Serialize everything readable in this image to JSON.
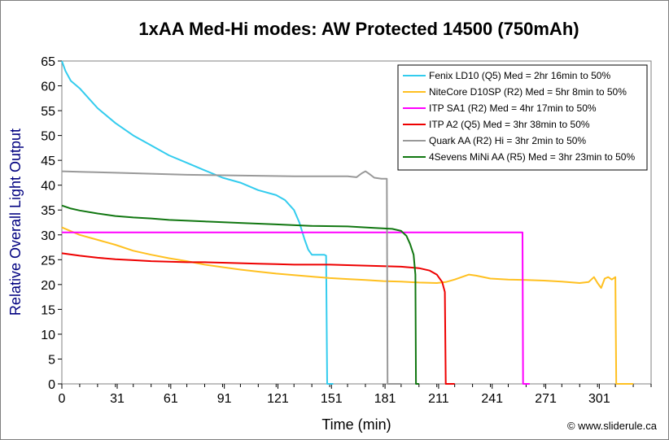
{
  "chart_data": {
    "type": "line",
    "title": "1xAA Med-Hi modes: AW Protected 14500 (750mAh)",
    "xlabel": "Time (min)",
    "ylabel": "Relative Overall Light Output",
    "xlim": [
      0,
      330
    ],
    "ylim": [
      0,
      65
    ],
    "x_ticks": [
      0,
      31,
      61,
      91,
      121,
      151,
      181,
      211,
      241,
      271,
      301
    ],
    "y_ticks": [
      0,
      5,
      10,
      15,
      20,
      25,
      30,
      35,
      40,
      45,
      50,
      55,
      60,
      65
    ],
    "legend_position": "top-right",
    "credit": "© www.sliderule.ca",
    "series": [
      {
        "name": "Fenix LD10 (Q5) Med = 2hr 16min to 50%",
        "color": "#33ccee",
        "points": [
          [
            0,
            65
          ],
          [
            2,
            63
          ],
          [
            5,
            61
          ],
          [
            10,
            59.5
          ],
          [
            15,
            57.5
          ],
          [
            20,
            55.5
          ],
          [
            30,
            52.5
          ],
          [
            40,
            50
          ],
          [
            50,
            48
          ],
          [
            60,
            46
          ],
          [
            70,
            44.5
          ],
          [
            80,
            43
          ],
          [
            90,
            41.5
          ],
          [
            100,
            40.5
          ],
          [
            110,
            39
          ],
          [
            120,
            38
          ],
          [
            125,
            37
          ],
          [
            130,
            35
          ],
          [
            133,
            32.5
          ],
          [
            136,
            29
          ],
          [
            138,
            27
          ],
          [
            140,
            26
          ],
          [
            145,
            26
          ],
          [
            147,
            26
          ],
          [
            148,
            25.8
          ],
          [
            148.6,
            0
          ],
          [
            152,
            0
          ]
        ]
      },
      {
        "name": "NiteCore D10SP (R2) Med = 5hr 8min to 50%",
        "color": "#ffc020",
        "points": [
          [
            0,
            31.5
          ],
          [
            10,
            30
          ],
          [
            20,
            29
          ],
          [
            30,
            28
          ],
          [
            40,
            26.8
          ],
          [
            50,
            26
          ],
          [
            60,
            25.3
          ],
          [
            70,
            24.7
          ],
          [
            80,
            24
          ],
          [
            90,
            23.5
          ],
          [
            100,
            23
          ],
          [
            110,
            22.6
          ],
          [
            120,
            22.2
          ],
          [
            130,
            21.9
          ],
          [
            140,
            21.6
          ],
          [
            150,
            21.3
          ],
          [
            160,
            21.1
          ],
          [
            170,
            20.9
          ],
          [
            180,
            20.7
          ],
          [
            190,
            20.6
          ],
          [
            200,
            20.4
          ],
          [
            210,
            20.3
          ],
          [
            215,
            20.5
          ],
          [
            220,
            21
          ],
          [
            228,
            22
          ],
          [
            232,
            21.8
          ],
          [
            240,
            21.2
          ],
          [
            250,
            21
          ],
          [
            260,
            20.9
          ],
          [
            270,
            20.8
          ],
          [
            280,
            20.6
          ],
          [
            290,
            20.3
          ],
          [
            295,
            20.5
          ],
          [
            298,
            21.5
          ],
          [
            300,
            20.3
          ],
          [
            302,
            19.3
          ],
          [
            304,
            21.2
          ],
          [
            306,
            21.5
          ],
          [
            308,
            21
          ],
          [
            310,
            21.5
          ],
          [
            310.5,
            0
          ],
          [
            320,
            0
          ]
        ]
      },
      {
        "name": "ITP SA1 (R2) Med = 4hr 17min to 50%",
        "color": "#ff00ff",
        "points": [
          [
            0,
            30.5
          ],
          [
            100,
            30.5
          ],
          [
            200,
            30.5
          ],
          [
            258,
            30.5
          ],
          [
            258.3,
            0
          ],
          [
            262,
            0
          ]
        ]
      },
      {
        "name": "ITP A2 (Q5) Med = 3hr 38min to 50%",
        "color": "#ee0000",
        "points": [
          [
            0,
            26.3
          ],
          [
            10,
            25.8
          ],
          [
            20,
            25.4
          ],
          [
            30,
            25.1
          ],
          [
            40,
            24.9
          ],
          [
            50,
            24.7
          ],
          [
            60,
            24.6
          ],
          [
            70,
            24.5
          ],
          [
            80,
            24.5
          ],
          [
            90,
            24.4
          ],
          [
            100,
            24.3
          ],
          [
            110,
            24.2
          ],
          [
            120,
            24.1
          ],
          [
            130,
            24
          ],
          [
            140,
            24
          ],
          [
            150,
            24
          ],
          [
            160,
            23.9
          ],
          [
            170,
            23.8
          ],
          [
            180,
            23.7
          ],
          [
            190,
            23.6
          ],
          [
            200,
            23.3
          ],
          [
            206,
            22.8
          ],
          [
            210,
            22
          ],
          [
            213,
            20.5
          ],
          [
            214.5,
            18.5
          ],
          [
            215,
            0
          ],
          [
            220,
            0
          ]
        ]
      },
      {
        "name": "Quark AA (R2) Hi = 3hr 2min to 50%",
        "color": "#999999",
        "points": [
          [
            0,
            42.8
          ],
          [
            10,
            42.7
          ],
          [
            30,
            42.5
          ],
          [
            50,
            42.3
          ],
          [
            70,
            42.1
          ],
          [
            90,
            42
          ],
          [
            110,
            41.9
          ],
          [
            130,
            41.8
          ],
          [
            150,
            41.8
          ],
          [
            160,
            41.8
          ],
          [
            165,
            41.6
          ],
          [
            168,
            42.4
          ],
          [
            170,
            42.8
          ],
          [
            172,
            42.3
          ],
          [
            175,
            41.5
          ],
          [
            179,
            41.3
          ],
          [
            182,
            41.3
          ],
          [
            182.4,
            0
          ],
          [
            190,
            0
          ]
        ]
      },
      {
        "name": "4Sevens MiNi AA (R5) Med = 3hr 23min to 50%",
        "color": "#117711",
        "points": [
          [
            0,
            35.9
          ],
          [
            5,
            35.3
          ],
          [
            10,
            34.9
          ],
          [
            20,
            34.3
          ],
          [
            30,
            33.8
          ],
          [
            40,
            33.5
          ],
          [
            50,
            33.3
          ],
          [
            60,
            33
          ],
          [
            80,
            32.7
          ],
          [
            100,
            32.4
          ],
          [
            120,
            32.1
          ],
          [
            140,
            31.8
          ],
          [
            160,
            31.7
          ],
          [
            175,
            31.4
          ],
          [
            185,
            31.2
          ],
          [
            190,
            30.8
          ],
          [
            193,
            29.8
          ],
          [
            195,
            28.2
          ],
          [
            197,
            26
          ],
          [
            198,
            22
          ],
          [
            198.3,
            0
          ],
          [
            200,
            0
          ]
        ]
      }
    ]
  }
}
